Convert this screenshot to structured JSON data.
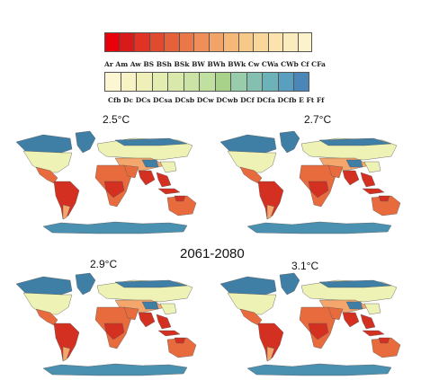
{
  "legend": {
    "row1_labels": [
      "Ar",
      "Am",
      "Aw",
      "BS",
      "BSh",
      "BSk",
      "BW",
      "BWh",
      "BWk",
      "Cw",
      "CWa",
      "CWb",
      "Cf",
      "CFa"
    ],
    "row1_colors": [
      "#e8000b",
      "#d91a1a",
      "#e03324",
      "#e04a2e",
      "#e6603a",
      "#ea7748",
      "#ef8e58",
      "#f2a468",
      "#f5b878",
      "#f7c989",
      "#f9d79b",
      "#fae3ad",
      "#fbecbe",
      "#fcf3cd"
    ],
    "row2_labels": [
      "Cfb",
      "Dc",
      "DCs",
      "DCsa",
      "DCsb",
      "DCw",
      "DCwb",
      "DCf",
      "DCfa",
      "DCfb",
      "E",
      "Ft",
      "Ff"
    ],
    "row2_colors": [
      "#fdf6d3",
      "#f7f3c4",
      "#eff0b8",
      "#e4edb1",
      "#d8e9ab",
      "#cbe4a5",
      "#bfe09f",
      "#a8d28a",
      "#98ccab",
      "#83c0b0",
      "#6cb2b8",
      "#5aa0be",
      "#4a86b8"
    ]
  },
  "panels": [
    {
      "title": "2.5°C"
    },
    {
      "title": "2.7°C"
    },
    {
      "title": "2.9°C"
    },
    {
      "title": "3.1°C"
    }
  ],
  "period_label": "2061-2080",
  "colors": {
    "ocean": "#ffffff",
    "boreal": "#3f7fa6",
    "temperate": "#eef3b5",
    "steppe": "#f4a66c",
    "arid": "#e86b3d",
    "tropical": "#d43022",
    "antarctic": "#4a90b0"
  }
}
